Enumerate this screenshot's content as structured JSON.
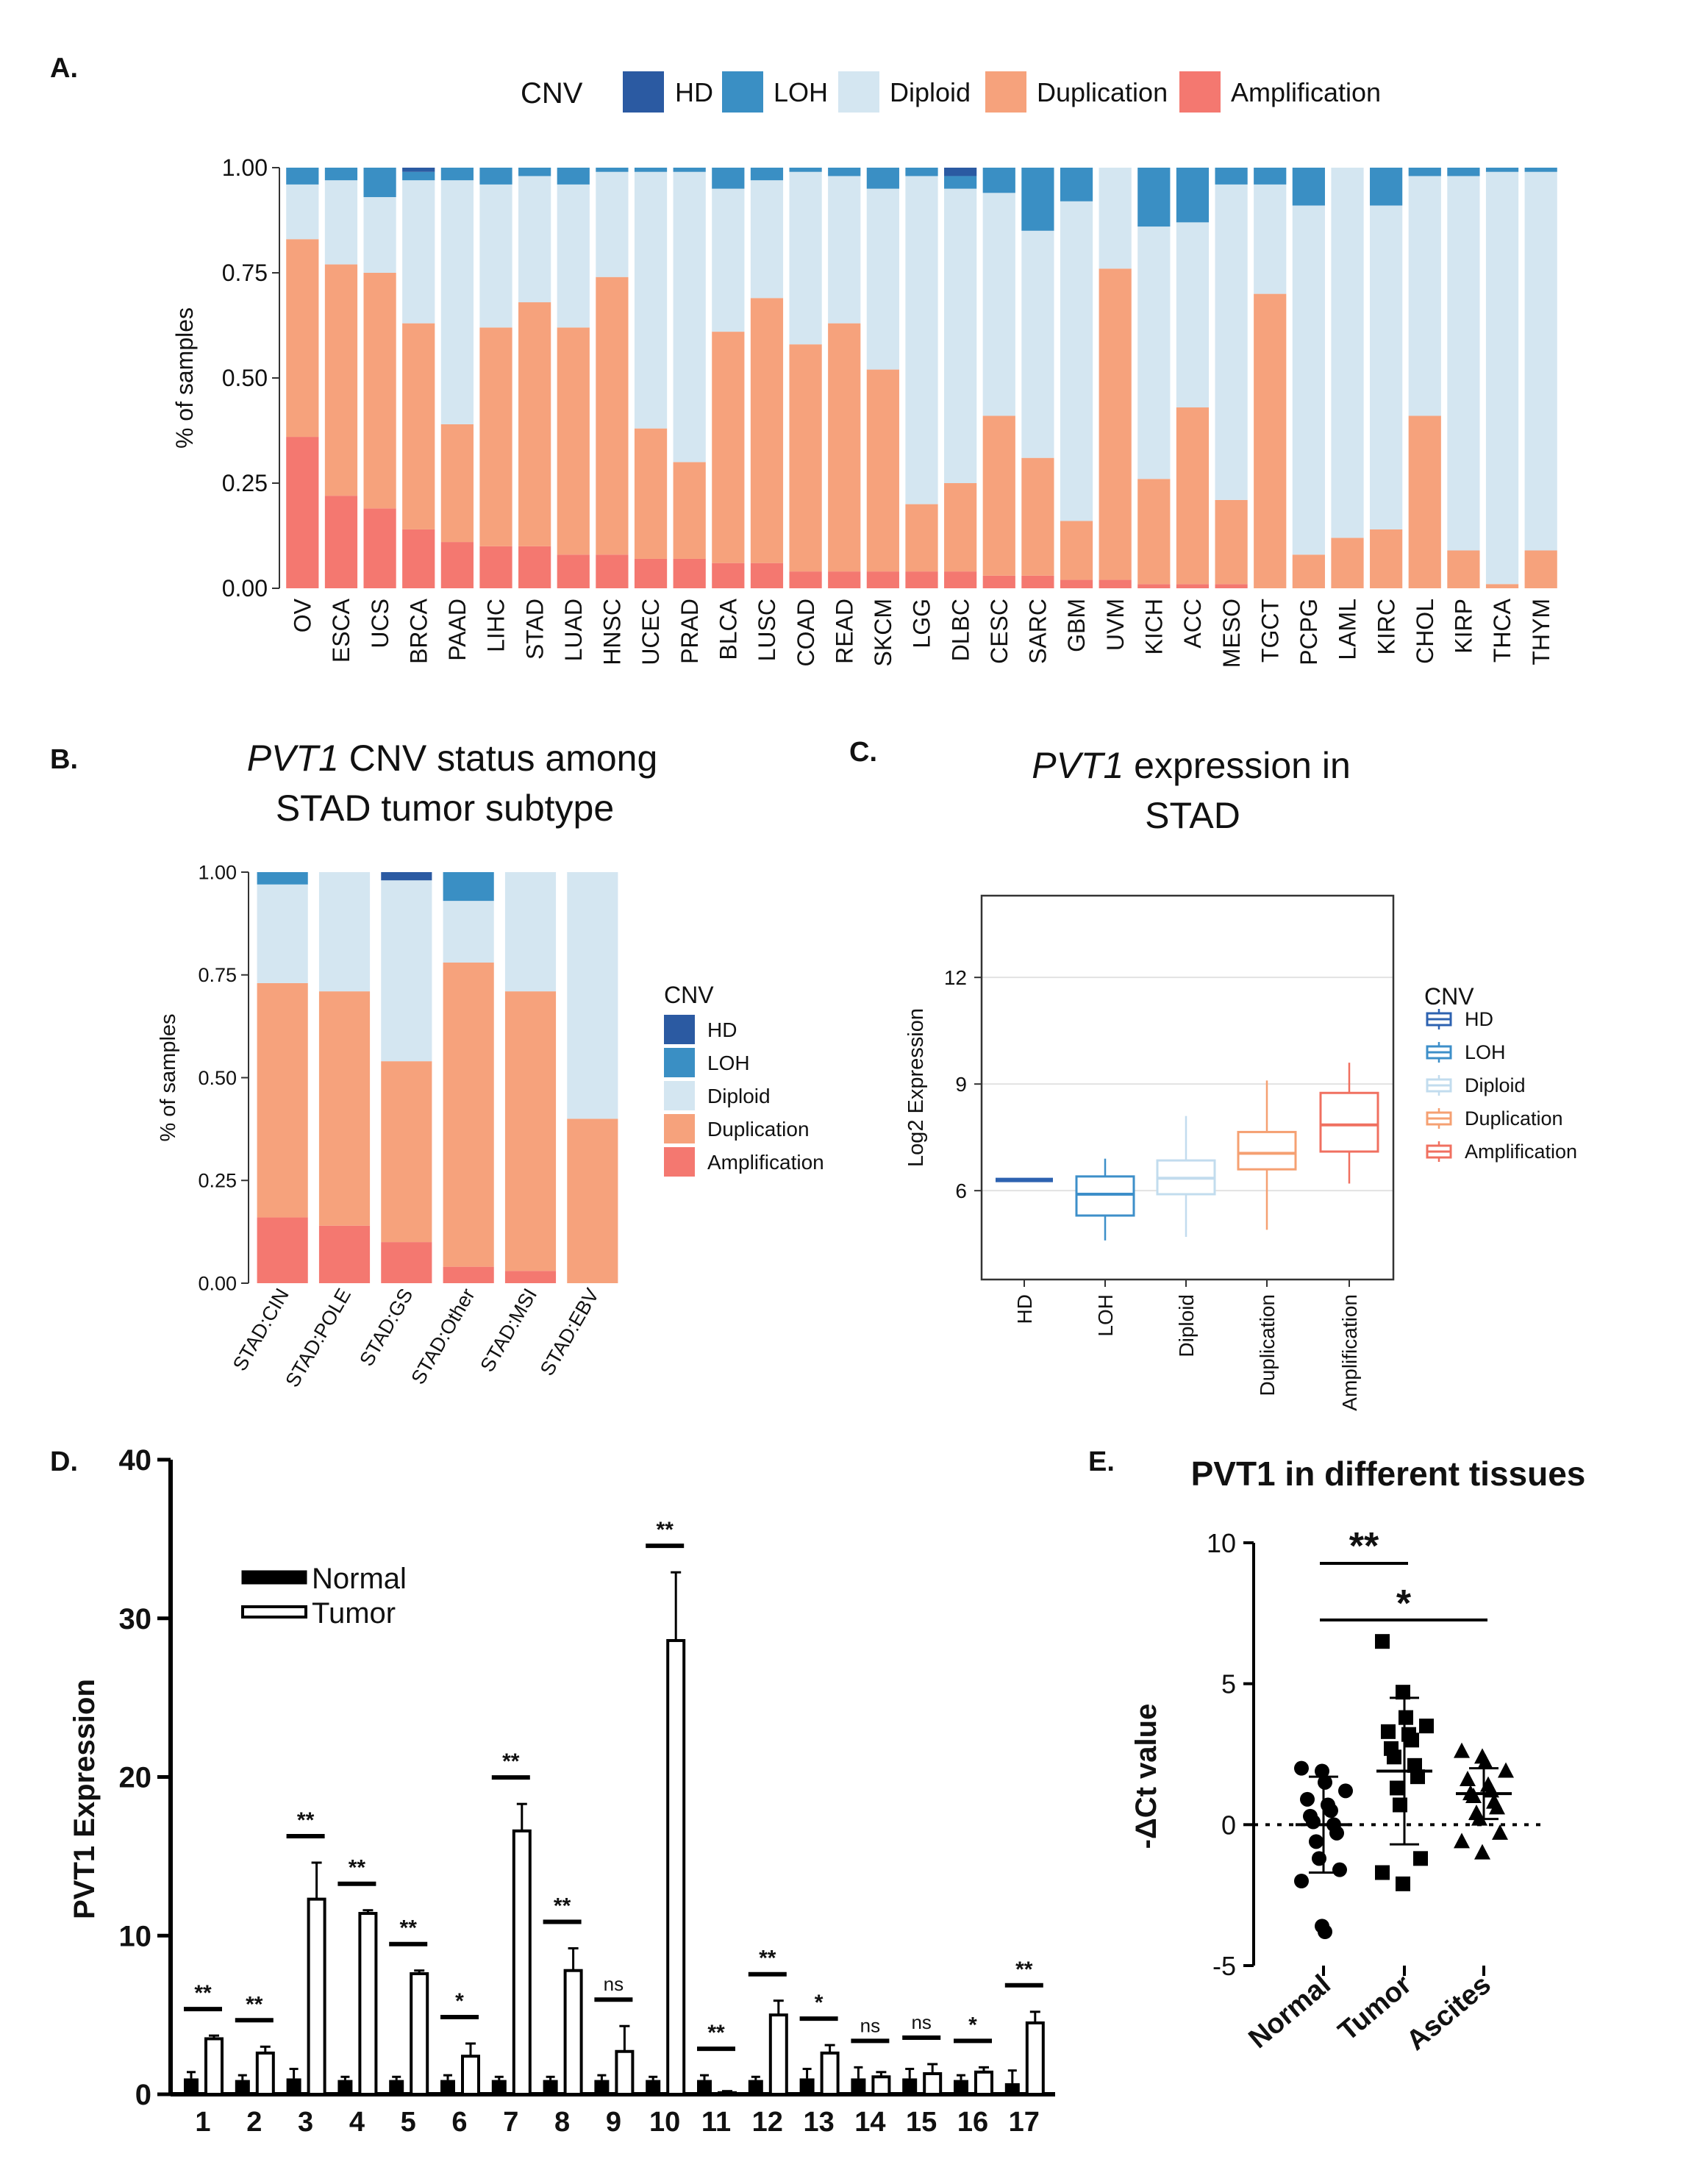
{
  "colors": {
    "HD": "#2b5aa2",
    "LOH": "#3a8fc4",
    "Diploid": "#d4e6f1",
    "Duplication": "#f6a27c",
    "Amplification": "#f47870",
    "c_line_HD": "#2d62b0",
    "c_line_LOH": "#3d8fc9",
    "c_line_Diploid": "#c2dcee",
    "c_line_Duplication": "#f5a072",
    "c_line_Amplification": "#f07060"
  },
  "panelA": {
    "label": "A.",
    "legend_title": "CNV",
    "legend": [
      "HD",
      "LOH",
      "Diploid",
      "Duplication",
      "Amplification"
    ]
  },
  "panelB": {
    "label": "B.",
    "title_italic": "PVT1",
    "title_rest": " CNV status among",
    "title_line2": "STAD tumor subtype",
    "legend_title": "CNV",
    "legend": [
      "HD",
      "LOH",
      "Diploid",
      "Duplication",
      "Amplification"
    ]
  },
  "panelC": {
    "label": "C.",
    "title_italic": "PVT1",
    "title_rest": " expression in",
    "title_line2": "STAD",
    "legend_title": "CNV",
    "legend": [
      "HD",
      "LOH",
      "Diploid",
      "Duplication",
      "Amplification"
    ]
  },
  "panelD": {
    "label": "D."
  },
  "panelE": {
    "label": "E."
  },
  "chart_data": [
    {
      "id": "A",
      "type": "bar",
      "stacked": true,
      "ylabel": "% of samples",
      "ylim": [
        0,
        1
      ],
      "yticks": [
        "0.00",
        "0.25",
        "0.50",
        "0.75",
        "1.00"
      ],
      "categories": [
        "OV",
        "ESCA",
        "UCS",
        "BRCA",
        "PAAD",
        "LIHC",
        "STAD",
        "LUAD",
        "HNSC",
        "UCEC",
        "PRAD",
        "BLCA",
        "LUSC",
        "COAD",
        "READ",
        "SKCM",
        "LGG",
        "DLBC",
        "CESC",
        "SARC",
        "GBM",
        "UVM",
        "KICH",
        "ACC",
        "MESO",
        "TGCT",
        "PCPG",
        "LAML",
        "KIRC",
        "CHOL",
        "KIRP",
        "THCA",
        "THYM"
      ],
      "series": [
        {
          "name": "Amplification",
          "values": [
            0.36,
            0.22,
            0.19,
            0.14,
            0.11,
            0.1,
            0.1,
            0.08,
            0.08,
            0.07,
            0.07,
            0.06,
            0.06,
            0.04,
            0.04,
            0.04,
            0.04,
            0.04,
            0.03,
            0.03,
            0.02,
            0.02,
            0.01,
            0.01,
            0.01,
            0,
            0,
            0,
            0,
            0,
            0,
            0,
            0
          ]
        },
        {
          "name": "Duplication",
          "values": [
            0.47,
            0.55,
            0.56,
            0.49,
            0.28,
            0.52,
            0.58,
            0.54,
            0.66,
            0.31,
            0.23,
            0.55,
            0.63,
            0.54,
            0.59,
            0.48,
            0.16,
            0.21,
            0.38,
            0.28,
            0.14,
            0.74,
            0.25,
            0.42,
            0.2,
            0.7,
            0.08,
            0.12,
            0.14,
            0.41,
            0.09,
            0.01,
            0.09
          ]
        },
        {
          "name": "Diploid",
          "values": [
            0.13,
            0.2,
            0.18,
            0.34,
            0.58,
            0.34,
            0.3,
            0.34,
            0.25,
            0.61,
            0.69,
            0.34,
            0.28,
            0.41,
            0.35,
            0.43,
            0.78,
            0.7,
            0.53,
            0.54,
            0.76,
            0.24,
            0.6,
            0.44,
            0.75,
            0.26,
            0.83,
            0.88,
            0.77,
            0.57,
            0.89,
            0.98,
            0.9
          ]
        },
        {
          "name": "LOH",
          "values": [
            0.04,
            0.03,
            0.07,
            0.02,
            0.03,
            0.04,
            0.02,
            0.04,
            0.01,
            0.01,
            0.01,
            0.05,
            0.03,
            0.01,
            0.02,
            0.05,
            0.02,
            0.03,
            0.06,
            0.15,
            0.08,
            0,
            0.14,
            0.13,
            0.04,
            0.04,
            0.09,
            0,
            0.09,
            0.02,
            0.02,
            0.01,
            0.01
          ]
        },
        {
          "name": "HD",
          "values": [
            0,
            0,
            0,
            0.01,
            0,
            0,
            0,
            0,
            0,
            0,
            0,
            0,
            0,
            0,
            0,
            0,
            0,
            0.02,
            0,
            0,
            0,
            0,
            0,
            0,
            0,
            0,
            0,
            0,
            0,
            0,
            0,
            0,
            0
          ]
        }
      ]
    },
    {
      "id": "B",
      "type": "bar",
      "stacked": true,
      "ylabel": "% of samples",
      "ylim": [
        0,
        1
      ],
      "yticks": [
        "0.00",
        "0.25",
        "0.50",
        "0.75",
        "1.00"
      ],
      "categories": [
        "STAD:CIN",
        "STAD:POLE",
        "STAD:GS",
        "STAD:Other",
        "STAD:MSI",
        "STAD:EBV"
      ],
      "series": [
        {
          "name": "Amplification",
          "values": [
            0.16,
            0.14,
            0.1,
            0.04,
            0.03,
            0
          ]
        },
        {
          "name": "Duplication",
          "values": [
            0.57,
            0.57,
            0.44,
            0.74,
            0.68,
            0.4
          ]
        },
        {
          "name": "Diploid",
          "values": [
            0.24,
            0.29,
            0.44,
            0.15,
            0.29,
            0.6
          ]
        },
        {
          "name": "LOH",
          "values": [
            0.03,
            0,
            0,
            0.07,
            0,
            0
          ]
        },
        {
          "name": "HD",
          "values": [
            0,
            0,
            0.02,
            0,
            0,
            0
          ]
        }
      ]
    },
    {
      "id": "C",
      "type": "box",
      "ylabel": "Log2 Expression",
      "ylim": [
        3.5,
        14.3
      ],
      "yticks": [
        6,
        9,
        12
      ],
      "categories": [
        "HD",
        "LOH",
        "Diploid",
        "Duplication",
        "Amplification"
      ],
      "boxes": [
        {
          "name": "HD",
          "min": 6.3,
          "q1": 6.3,
          "median": 6.3,
          "q3": 6.3,
          "max": 6.3
        },
        {
          "name": "LOH",
          "min": 4.6,
          "q1": 5.3,
          "median": 5.9,
          "q3": 6.4,
          "max": 6.9
        },
        {
          "name": "Diploid",
          "min": 4.7,
          "q1": 5.9,
          "median": 6.35,
          "q3": 6.85,
          "max": 8.1
        },
        {
          "name": "Duplication",
          "min": 4.9,
          "q1": 6.6,
          "median": 7.05,
          "q3": 7.65,
          "max": 9.1
        },
        {
          "name": "Amplification",
          "min": 6.2,
          "q1": 7.1,
          "median": 7.85,
          "q3": 8.75,
          "max": 9.6
        }
      ]
    },
    {
      "id": "D",
      "type": "bar",
      "ylabel": "PVT1 Expression",
      "ylim": [
        0,
        40
      ],
      "yticks": [
        0,
        10,
        20,
        30,
        40
      ],
      "categories": [
        "1",
        "2",
        "3",
        "4",
        "5",
        "6",
        "7",
        "8",
        "9",
        "10",
        "11",
        "12",
        "13",
        "14",
        "15",
        "16",
        "17"
      ],
      "series": [
        {
          "name": "Normal",
          "values": [
            1.0,
            0.9,
            1.0,
            0.9,
            0.9,
            0.9,
            0.9,
            0.9,
            0.9,
            0.9,
            0.9,
            0.9,
            1.0,
            1.0,
            1.0,
            0.9,
            0.7
          ],
          "errors": [
            0.4,
            0.3,
            0.6,
            0.2,
            0.2,
            0.3,
            0.2,
            0.2,
            0.3,
            0.2,
            0.3,
            0.2,
            0.6,
            0.7,
            0.6,
            0.3,
            0.8
          ]
        },
        {
          "name": "Tumor",
          "values": [
            3.5,
            2.6,
            12.3,
            11.4,
            7.6,
            2.4,
            16.6,
            7.8,
            2.7,
            28.6,
            0.1,
            5.0,
            2.6,
            1.1,
            1.3,
            1.4,
            4.5
          ],
          "errors": [
            0.2,
            0.4,
            2.3,
            0.2,
            0.2,
            0.8,
            1.7,
            1.4,
            1.6,
            4.3,
            0.1,
            0.9,
            0.5,
            0.3,
            0.6,
            0.3,
            0.7
          ]
        }
      ],
      "significance": [
        "**",
        "**",
        "**",
        "**",
        "**",
        "*",
        "**",
        "**",
        "ns",
        "**",
        "**",
        "**",
        "*",
        "ns",
        "ns",
        "*",
        "**"
      ],
      "legend": [
        "Normal",
        "Tumor"
      ]
    },
    {
      "id": "E",
      "type": "scatter",
      "title": "PVT1 in different tissues",
      "ylabel": "-ΔCt value",
      "ylim": [
        -5,
        10
      ],
      "yticks": [
        -5,
        0,
        5,
        10
      ],
      "categories": [
        "Normal",
        "Tumor",
        "Ascites"
      ],
      "groups": [
        {
          "name": "Normal",
          "mean": 0.0,
          "sd": 1.7,
          "points": [
            2.0,
            1.9,
            1.5,
            1.2,
            0.9,
            0.7,
            0.5,
            0.3,
            0.1,
            0.0,
            -0.3,
            -0.6,
            -1.2,
            -1.6,
            -2.0,
            -3.6,
            -3.8
          ]
        },
        {
          "name": "Tumor",
          "mean": 1.9,
          "sd": 2.6,
          "points": [
            6.5,
            4.7,
            3.8,
            3.5,
            3.3,
            3.2,
            3.0,
            2.7,
            2.4,
            2.1,
            1.7,
            1.3,
            0.7,
            -1.2,
            -1.7,
            -2.1
          ]
        },
        {
          "name": "Ascites",
          "mean": 1.1,
          "sd": 0.9,
          "points": [
            2.6,
            2.4,
            2.2,
            1.9,
            1.6,
            1.4,
            1.2,
            1.1,
            1.0,
            0.8,
            0.6,
            0.4,
            0.2,
            -0.3,
            -0.6,
            -1.0
          ]
        }
      ],
      "comparisons": [
        {
          "from": "Normal",
          "to": "Tumor",
          "label": "**"
        },
        {
          "from": "Normal",
          "to": "Ascites",
          "label": "*"
        }
      ]
    }
  ]
}
